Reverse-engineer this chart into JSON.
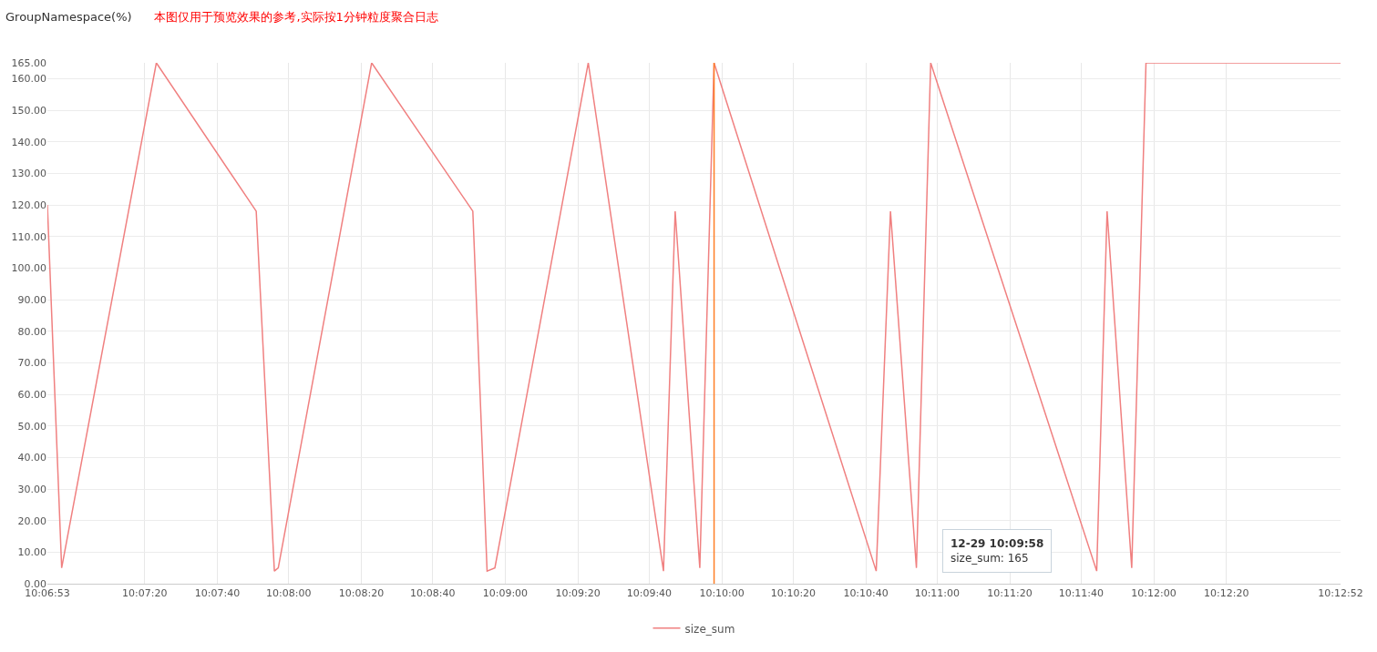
{
  "chart_data": {
    "type": "line",
    "title": "GroupNamespace(%)",
    "subtitle": "本图仅用于预览效果的参考,实际按1分钟粒度聚合日志",
    "x": [
      10.1147,
      10.1158,
      10.1231,
      10.1308,
      10.1322,
      10.1325,
      10.1397,
      10.1475,
      10.1486,
      10.1492,
      10.1564,
      10.1622,
      10.1631,
      10.165,
      10.1661,
      10.1786,
      10.1797,
      10.1817,
      10.1828,
      10.1956,
      10.1964,
      10.1983,
      10.1994,
      10.2144
    ],
    "series": [
      {
        "name": "size_sum",
        "color": "#f08080",
        "values": [
          120,
          5,
          165,
          118,
          4,
          5,
          165,
          118,
          4,
          5,
          165,
          4,
          118,
          5,
          165,
          4,
          118,
          5,
          165,
          4,
          118,
          5,
          165,
          165
        ]
      }
    ],
    "xlim": [
      10.1147,
      10.2144
    ],
    "xticks": [
      {
        "value": 10.1147,
        "label": "10:06:53"
      },
      {
        "value": 10.1222,
        "label": "10:07:20"
      },
      {
        "value": 10.1278,
        "label": "10:07:40"
      },
      {
        "value": 10.1333,
        "label": "10:08:00"
      },
      {
        "value": 10.1389,
        "label": "10:08:20"
      },
      {
        "value": 10.1444,
        "label": "10:08:40"
      },
      {
        "value": 10.15,
        "label": "10:09:00"
      },
      {
        "value": 10.1556,
        "label": "10:09:20"
      },
      {
        "value": 10.1611,
        "label": "10:09:40"
      },
      {
        "value": 10.1667,
        "label": "10:10:00"
      },
      {
        "value": 10.1722,
        "label": "10:10:20"
      },
      {
        "value": 10.1778,
        "label": "10:10:40"
      },
      {
        "value": 10.1833,
        "label": "10:11:00"
      },
      {
        "value": 10.1889,
        "label": "10:11:20"
      },
      {
        "value": 10.1944,
        "label": "10:11:40"
      },
      {
        "value": 10.2,
        "label": "10:12:00"
      },
      {
        "value": 10.2056,
        "label": "10:12:20"
      },
      {
        "value": 10.2144,
        "label": "10:12:52"
      }
    ],
    "ylim": [
      0,
      165
    ],
    "yticks": [
      {
        "value": 0,
        "label": "0.00"
      },
      {
        "value": 10,
        "label": "10.00"
      },
      {
        "value": 20,
        "label": "20.00"
      },
      {
        "value": 30,
        "label": "30.00"
      },
      {
        "value": 40,
        "label": "40.00"
      },
      {
        "value": 50,
        "label": "50.00"
      },
      {
        "value": 60,
        "label": "60.00"
      },
      {
        "value": 70,
        "label": "70.00"
      },
      {
        "value": 80,
        "label": "80.00"
      },
      {
        "value": 90,
        "label": "90.00"
      },
      {
        "value": 100,
        "label": "100.00"
      },
      {
        "value": 110,
        "label": "110.00"
      },
      {
        "value": 120,
        "label": "120.00"
      },
      {
        "value": 130,
        "label": "130.00"
      },
      {
        "value": 140,
        "label": "140.00"
      },
      {
        "value": 150,
        "label": "150.00"
      },
      {
        "value": 160,
        "label": "160.00"
      },
      {
        "value": 165,
        "label": "165.00"
      }
    ],
    "ref_lines": [
      {
        "axis": "x",
        "value": 10.1661,
        "color": "#ff7f27"
      }
    ],
    "annotations": [
      "12-29 10:09:58",
      "size_sum: 165"
    ],
    "grid": true,
    "legend": "bottom",
    "marker": "none",
    "line_style": "solid"
  }
}
